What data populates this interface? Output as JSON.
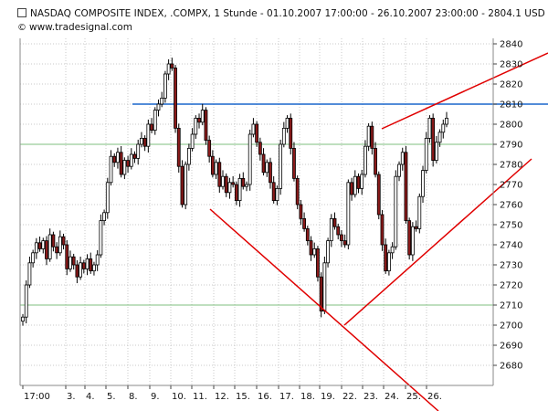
{
  "header": {
    "title": "NASDAQ COMPOSITE INDEX, .COMPX, 1 Stunde - 01.10.2007 17:00:00 - 26.10.2007 23:00:00 - 2804.1 USD",
    "source": "www.tradesignal.com"
  },
  "colors": {
    "up_candle": "#ffffff",
    "down_candle": "#8b1a1a",
    "wick": "#000000",
    "grid": "#c8c8c8",
    "trend_line": "#e00000",
    "resistance_line": "#1a66cc",
    "highlight_grid": "#7fbf7f"
  },
  "chart_data": {
    "type": "candlestick",
    "ylim": [
      2670,
      2845
    ],
    "y_ticks": [
      2680,
      2690,
      2700,
      2710,
      2720,
      2730,
      2740,
      2750,
      2760,
      2770,
      2780,
      2790,
      2800,
      2810,
      2820,
      2830,
      2840
    ],
    "x_labels": [
      "17:00",
      "3.",
      "4.",
      "5.",
      "8.",
      "9.",
      "10.",
      "11.",
      "12.",
      "15.",
      "16.",
      "17.",
      "18.",
      "19.",
      "22.",
      "23.",
      "24.",
      "25.",
      "26."
    ],
    "horizontal_levels": [
      {
        "value": 2810,
        "style": "resistance"
      },
      {
        "value": 2790,
        "style": "grid-highlight"
      },
      {
        "value": 2710,
        "style": "grid-highlight"
      }
    ],
    "closes": [
      2704,
      2720,
      2731,
      2736,
      2741,
      2738,
      2742,
      2733,
      2745,
      2739,
      2736,
      2744,
      2740,
      2728,
      2734,
      2730,
      2724,
      2731,
      2728,
      2733,
      2727,
      2730,
      2735,
      2752,
      2756,
      2771,
      2784,
      2781,
      2786,
      2775,
      2782,
      2779,
      2785,
      2783,
      2790,
      2793,
      2789,
      2800,
      2797,
      2807,
      2810,
      2813,
      2825,
      2830,
      2828,
      2798,
      2779,
      2760,
      2780,
      2788,
      2795,
      2803,
      2801,
      2807,
      2792,
      2784,
      2775,
      2781,
      2769,
      2774,
      2766,
      2771,
      2770,
      2762,
      2773,
      2769,
      2770,
      2795,
      2800,
      2791,
      2785,
      2776,
      2781,
      2771,
      2762,
      2768,
      2790,
      2798,
      2803,
      2788,
      2773,
      2760,
      2753,
      2748,
      2742,
      2735,
      2738,
      2724,
      2707,
      2731,
      2742,
      2753,
      2749,
      2745,
      2742,
      2740,
      2771,
      2765,
      2774,
      2768,
      2775,
      2789,
      2799,
      2788,
      2775,
      2755,
      2740,
      2727,
      2736,
      2739,
      2774,
      2780,
      2786,
      2752,
      2735,
      2749,
      2748,
      2764,
      2777,
      2793,
      2803,
      2782,
      2791,
      2796,
      2800,
      2803
    ]
  }
}
